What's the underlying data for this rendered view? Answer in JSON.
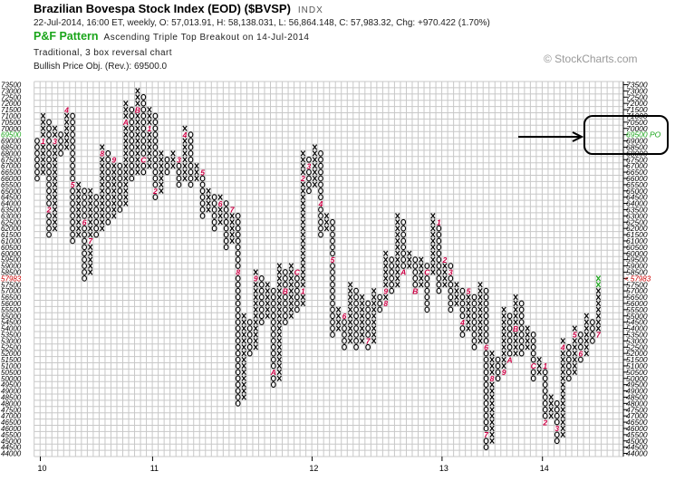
{
  "header": {
    "title": "Brazilian Bovespa Stock Index (EOD) ($BVSP)",
    "exchange": "INDX",
    "ohlc": "22-Jul-2014, 16:00 ET, weekly, O: 57,013.91, H: 58,138.031, L: 56,864.148, C: 57,983.32, Chg: +970.422 (1.70%)",
    "pattern_label": "P&F Pattern",
    "pattern_desc": "Ascending Triple Top Breakout on 14-Jul-2014",
    "method": "Traditional, 3 box reversal chart",
    "objective": "Bullish Price Obj. (Rev.): 69500.0"
  },
  "watermark": "© StockCharts.com",
  "colors": {
    "mark": "#000000",
    "month": "#cc0044",
    "green": "#1aa51a",
    "grid": "#c8c8c8",
    "current": "#cc0000"
  },
  "chart_data": {
    "type": "point-and-figure",
    "box_size": 500,
    "reversal": 3,
    "y_range": [
      44000,
      73500
    ],
    "current_price": "57983",
    "current_marker": "<",
    "price_objective": "69500",
    "po_suffix": "PO",
    "last_column_green_boxes": 2,
    "x_labels": [
      {
        "text": "10",
        "col": 1
      },
      {
        "text": "11",
        "col": 20
      },
      {
        "text": "12",
        "col": 47
      },
      {
        "text": "13",
        "col": 69
      },
      {
        "text": "14",
        "col": 86
      }
    ],
    "columns": [
      [
        "O",
        66000,
        69000,
        []
      ],
      [
        "X",
        66500,
        71000,
        [
          [
            69000,
            "1"
          ]
        ]
      ],
      [
        "O",
        61500,
        70500,
        [
          [
            63500,
            "2"
          ]
        ]
      ],
      [
        "X",
        62000,
        70000,
        [
          [
            69000,
            "3"
          ]
        ]
      ],
      [
        "O",
        68000,
        69500,
        []
      ],
      [
        "X",
        68500,
        71500,
        [
          [
            71500,
            "4"
          ]
        ]
      ],
      [
        "O",
        61000,
        71000,
        [
          [
            65500,
            "5"
          ]
        ]
      ],
      [
        "X",
        61500,
        65500,
        []
      ],
      [
        "O",
        58000,
        65000,
        [
          [
            62500,
            "6"
          ]
        ]
      ],
      [
        "X",
        58500,
        65000,
        [
          [
            61000,
            "7"
          ]
        ]
      ],
      [
        "O",
        61500,
        64500,
        []
      ],
      [
        "X",
        62000,
        68500,
        [
          [
            68000,
            "8"
          ]
        ]
      ],
      [
        "O",
        62500,
        68000,
        []
      ],
      [
        "X",
        63000,
        67500,
        [
          [
            67500,
            "9"
          ]
        ]
      ],
      [
        "O",
        63500,
        67000,
        []
      ],
      [
        "X",
        64000,
        72000,
        [
          [
            70500,
            "A"
          ]
        ]
      ],
      [
        "O",
        66000,
        71500,
        []
      ],
      [
        "X",
        66500,
        73000,
        [
          [
            71500,
            "B"
          ]
        ]
      ],
      [
        "O",
        66500,
        72500,
        [
          [
            67500,
            "C"
          ]
        ]
      ],
      [
        "X",
        67000,
        71500,
        [
          [
            70000,
            "1"
          ]
        ]
      ],
      [
        "O",
        64500,
        71000,
        [
          [
            65000,
            "2"
          ]
        ]
      ],
      [
        "X",
        65000,
        68000,
        []
      ],
      [
        "O",
        66500,
        67500,
        []
      ],
      [
        "X",
        67000,
        68000,
        []
      ],
      [
        "O",
        65500,
        67500,
        [
          [
            67500,
            "3"
          ]
        ]
      ],
      [
        "X",
        66000,
        70000,
        [
          [
            69500,
            "4"
          ]
        ]
      ],
      [
        "O",
        65500,
        69500,
        []
      ],
      [
        "X",
        66000,
        67000,
        []
      ],
      [
        "O",
        63000,
        66500,
        [
          [
            66500,
            "5"
          ]
        ]
      ],
      [
        "X",
        63500,
        65000,
        []
      ],
      [
        "O",
        62000,
        64500,
        []
      ],
      [
        "X",
        62500,
        64500,
        [
          [
            64000,
            "6"
          ]
        ]
      ],
      [
        "O",
        60500,
        64000,
        []
      ],
      [
        "X",
        61000,
        63500,
        [
          [
            63500,
            "7"
          ]
        ]
      ],
      [
        "O",
        48000,
        63000,
        [
          [
            58500,
            "8"
          ]
        ]
      ],
      [
        "X",
        48500,
        55000,
        []
      ],
      [
        "O",
        52000,
        54500,
        []
      ],
      [
        "X",
        52500,
        58500,
        [
          [
            58000,
            "9"
          ]
        ]
      ],
      [
        "O",
        54500,
        58000,
        []
      ],
      [
        "X",
        55000,
        57500,
        []
      ],
      [
        "O",
        49500,
        57000,
        [
          [
            50500,
            "A"
          ]
        ]
      ],
      [
        "X",
        50000,
        59000,
        []
      ],
      [
        "O",
        54500,
        58500,
        [
          [
            57000,
            "B"
          ]
        ]
      ],
      [
        "X",
        55000,
        59000,
        []
      ],
      [
        "O",
        55500,
        58500,
        [
          [
            58500,
            "C"
          ]
        ]
      ],
      [
        "X",
        56000,
        68000,
        [
          [
            57000,
            "1"
          ],
          [
            66000,
            "2"
          ]
        ]
      ],
      [
        "O",
        65000,
        67500,
        [
          [
            67000,
            "3"
          ]
        ]
      ],
      [
        "X",
        65500,
        68500,
        []
      ],
      [
        "O",
        61500,
        68000,
        [
          [
            64000,
            "4"
          ]
        ]
      ],
      [
        "X",
        62000,
        63000,
        []
      ],
      [
        "O",
        53500,
        62500,
        [
          [
            59500,
            "5"
          ]
        ]
      ],
      [
        "X",
        54000,
        55500,
        []
      ],
      [
        "O",
        52500,
        55000,
        [
          [
            55000,
            "6"
          ]
        ]
      ],
      [
        "X",
        53000,
        57500,
        []
      ],
      [
        "O",
        52500,
        57000,
        []
      ],
      [
        "X",
        53000,
        56500,
        []
      ],
      [
        "O",
        52500,
        56000,
        [
          [
            53000,
            "7"
          ]
        ]
      ],
      [
        "X",
        53000,
        57000,
        []
      ],
      [
        "O",
        55500,
        56500,
        []
      ],
      [
        "X",
        56000,
        60000,
        [
          [
            56000,
            "8"
          ],
          [
            57000,
            "9"
          ]
        ]
      ],
      [
        "O",
        57000,
        59500,
        []
      ],
      [
        "X",
        57500,
        63000,
        []
      ],
      [
        "O",
        58500,
        62500,
        [
          [
            58500,
            "A"
          ]
        ]
      ],
      [
        "X",
        59000,
        60000,
        []
      ],
      [
        "O",
        57000,
        59500,
        [
          [
            57000,
            "B"
          ]
        ]
      ],
      [
        "X",
        57500,
        59500,
        []
      ],
      [
        "O",
        55500,
        59000,
        [
          [
            58500,
            "C"
          ]
        ]
      ],
      [
        "X",
        58500,
        63000,
        []
      ],
      [
        "O",
        57000,
        62500,
        [
          [
            62500,
            "1"
          ]
        ]
      ],
      [
        "X",
        57500,
        59500,
        [
          [
            59500,
            "2"
          ]
        ]
      ],
      [
        "O",
        55500,
        59000,
        [
          [
            58500,
            "3"
          ]
        ]
      ],
      [
        "X",
        56000,
        57500,
        []
      ],
      [
        "O",
        53500,
        57000,
        [
          [
            54500,
            "4"
          ]
        ]
      ],
      [
        "X",
        54000,
        57000,
        [
          [
            57000,
            "5"
          ]
        ]
      ],
      [
        "O",
        52500,
        56500,
        []
      ],
      [
        "X",
        53000,
        57500,
        []
      ],
      [
        "O",
        44500,
        57000,
        [
          [
            52500,
            "6"
          ],
          [
            45500,
            "7"
          ]
        ]
      ],
      [
        "X",
        45000,
        52000,
        [
          [
            50000,
            "8"
          ]
        ]
      ],
      [
        "O",
        50000,
        51500,
        []
      ],
      [
        "X",
        50500,
        55500,
        [
          [
            50500,
            "9"
          ]
        ]
      ],
      [
        "O",
        51500,
        55000,
        [
          [
            51500,
            "A"
          ]
        ]
      ],
      [
        "X",
        52000,
        56500,
        [
          [
            54000,
            "B"
          ]
        ]
      ],
      [
        "O",
        52000,
        56000,
        []
      ],
      [
        "X",
        52500,
        54000,
        []
      ],
      [
        "O",
        50000,
        53500,
        [
          [
            51000,
            "C"
          ]
        ]
      ],
      [
        "X",
        50500,
        51500,
        []
      ],
      [
        "O",
        46500,
        51000,
        [
          [
            51000,
            "1"
          ],
          [
            46500,
            "2"
          ]
        ]
      ],
      [
        "X",
        47000,
        48500,
        []
      ],
      [
        "O",
        45000,
        48000,
        [
          [
            46000,
            "3"
          ]
        ]
      ],
      [
        "X",
        45500,
        53000,
        [
          [
            52500,
            "4"
          ]
        ]
      ],
      [
        "O",
        50000,
        52500,
        []
      ],
      [
        "X",
        50500,
        54000,
        [
          [
            53500,
            "5"
          ]
        ]
      ],
      [
        "O",
        51500,
        53500,
        [
          [
            52000,
            "6"
          ]
        ]
      ],
      [
        "X",
        52000,
        55000,
        []
      ],
      [
        "O",
        53000,
        54500,
        []
      ],
      [
        "X",
        53500,
        58000,
        [
          [
            53500,
            "7"
          ]
        ]
      ]
    ]
  }
}
